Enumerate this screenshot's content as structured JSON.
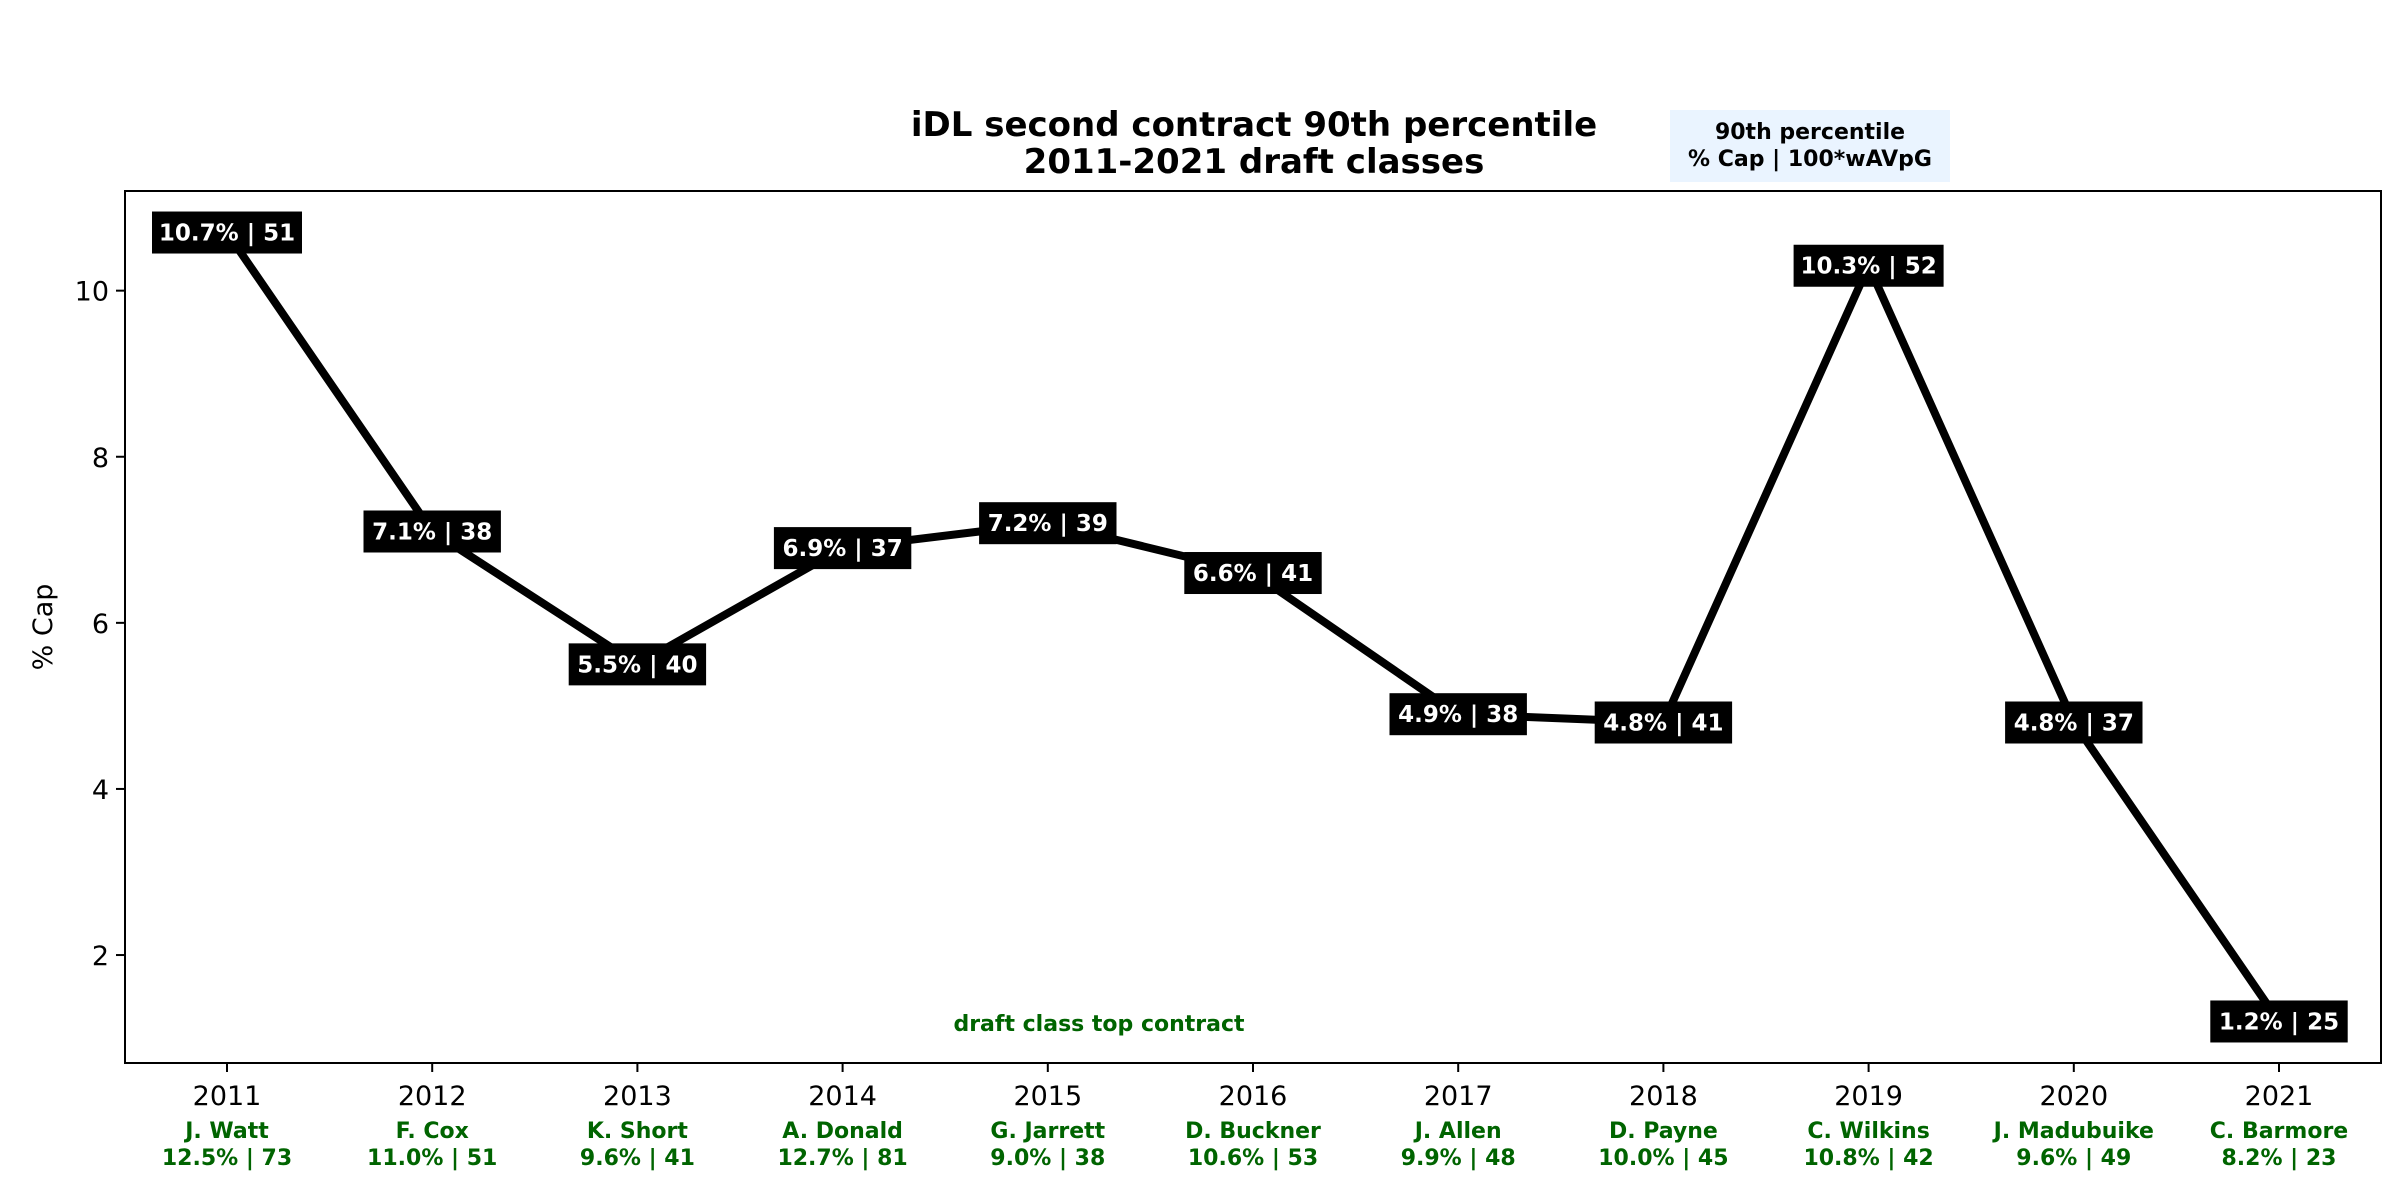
{
  "chart_data": {
    "type": "line",
    "title": "iDL second contract 90th percentile",
    "subtitle": "2011-2021 draft classes",
    "ylabel": "% Cap",
    "xlabel": "",
    "ylim": [
      0.7,
      11.2
    ],
    "yticks": [
      2,
      4,
      6,
      8,
      10
    ],
    "grid": false,
    "categories": [
      "2011",
      "2012",
      "2013",
      "2014",
      "2015",
      "2016",
      "2017",
      "2018",
      "2019",
      "2020",
      "2021"
    ],
    "series": [
      {
        "values": [
          10.7,
          7.1,
          5.5,
          6.9,
          7.2,
          6.6,
          4.9,
          4.8,
          10.3,
          4.8,
          1.2
        ],
        "labels": [
          "10.7% | 51",
          "7.1% | 38",
          "5.5% | 40",
          "6.9% | 37",
          "7.2% | 39",
          "6.6% | 41",
          "4.9% | 38",
          "4.8% | 41",
          "10.3% | 52",
          "4.8% | 37",
          "1.2% | 25"
        ]
      }
    ],
    "legend_box": {
      "line1": "90th percentile",
      "line2": "% Cap | 100*wAVpG",
      "placement": "top-right above plot"
    },
    "annotation": "draft class top contract",
    "top_contracts": [
      {
        "name": "J. Watt",
        "stats": "12.5% | 73"
      },
      {
        "name": "F. Cox",
        "stats": "11.0% | 51"
      },
      {
        "name": "K. Short",
        "stats": "9.6% | 41"
      },
      {
        "name": "A. Donald",
        "stats": "12.7% | 81"
      },
      {
        "name": "G. Jarrett",
        "stats": "9.0% | 38"
      },
      {
        "name": "D. Buckner",
        "stats": "10.6% | 53"
      },
      {
        "name": "J. Allen",
        "stats": "9.9% | 48"
      },
      {
        "name": "D. Payne",
        "stats": "10.0% | 45"
      },
      {
        "name": "C. Wilkins",
        "stats": "10.8% | 42"
      },
      {
        "name": "J. Madubuike",
        "stats": "9.6% | 49"
      },
      {
        "name": "C. Barmore",
        "stats": "8.2% | 23"
      }
    ],
    "colors": {
      "line": "#000000",
      "label_bg": "#000000",
      "label_text": "#ffffff",
      "green": "#006400",
      "legend_bg": "#eaf4ff"
    }
  }
}
